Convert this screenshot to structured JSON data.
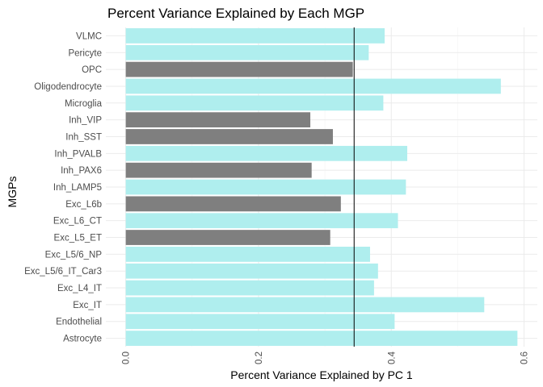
{
  "chart_data": {
    "type": "bar",
    "orientation": "horizontal",
    "title": "Percent Variance Explained by Each MGP",
    "xlabel": "Percent Variance Explained by PC 1",
    "ylabel": "MGPs",
    "xlim": [
      -0.03,
      0.62
    ],
    "x_ticks": [
      "0.0",
      "0.2",
      "0.4",
      "0.6"
    ],
    "x_tick_values": [
      0.0,
      0.2,
      0.4,
      0.6
    ],
    "reference_line": 0.344,
    "grid": true,
    "colors": {
      "above": "#afeeee",
      "below": "#7f7f7f",
      "reference": "#000000"
    },
    "categories": [
      "VLMC",
      "Pericyte",
      "OPC",
      "Oligodendrocyte",
      "Microglia",
      "Inh_VIP",
      "Inh_SST",
      "Inh_PVALB",
      "Inh_PAX6",
      "Inh_LAMP5",
      "Exc_L6b",
      "Exc_L6_CT",
      "Exc_L5_ET",
      "Exc_L5/6_NP",
      "Exc_L5/6_IT_Car3",
      "Exc_L4_IT",
      "Exc_IT",
      "Endothelial",
      "Astrocyte"
    ],
    "values": [
      0.39,
      0.366,
      0.342,
      0.565,
      0.388,
      0.278,
      0.312,
      0.424,
      0.28,
      0.422,
      0.324,
      0.41,
      0.308,
      0.368,
      0.38,
      0.374,
      0.54,
      0.405,
      0.59
    ]
  }
}
